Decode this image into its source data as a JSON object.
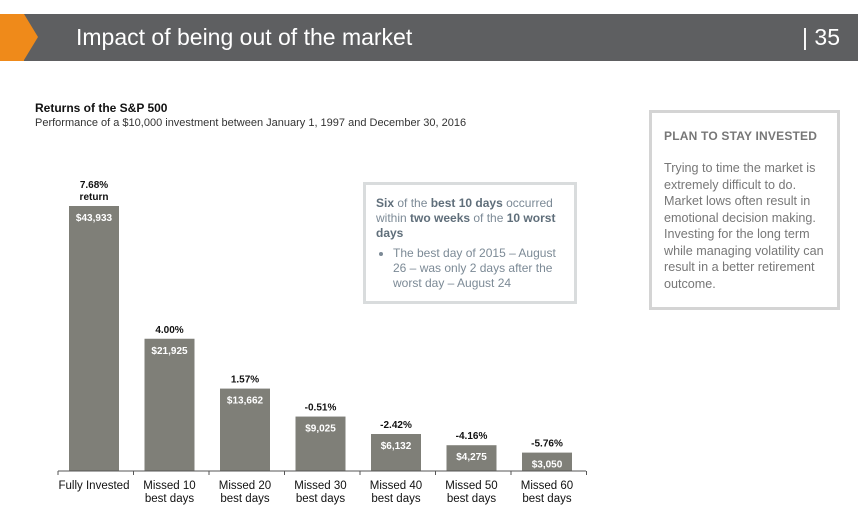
{
  "header": {
    "title": "Impact of being out of the market",
    "page_number": "| 35",
    "bar_color": "#5e5f61",
    "accent_color": "#ef8a1a"
  },
  "chart_data": {
    "type": "bar",
    "title": "Returns of the S&P 500",
    "subtitle": "Performance of a $10,000 investment between January 1, 1997 and December 30, 2016",
    "categories": [
      "Fully Invested",
      "Missed 10 best days",
      "Missed 20 best days",
      "Missed 30 best days",
      "Missed 40 best days",
      "Missed 50 best days",
      "Missed 60 best days"
    ],
    "values": [
      43933,
      21925,
      13662,
      9025,
      6132,
      4275,
      3050
    ],
    "value_labels": [
      "$43,933",
      "$21,925",
      "$13,662",
      "$9,025",
      "$6,132",
      "$4,275",
      "$3,050"
    ],
    "return_labels": [
      "7.68%\nreturn",
      "4.00%",
      "1.57%",
      "-0.51%",
      "-2.42%",
      "-4.16%",
      "-5.76%"
    ],
    "bar_color": "#7f7f78",
    "ylim": [
      0,
      43933
    ],
    "grid": false,
    "xlabel": "",
    "ylabel": ""
  },
  "callout": {
    "segments": [
      {
        "text": "Six",
        "bold": true
      },
      {
        "text": " of the ",
        "bold": false
      },
      {
        "text": "best 10 days",
        "bold": true
      },
      {
        "text": " occurred within ",
        "bold": false
      },
      {
        "text": "two weeks",
        "bold": true
      },
      {
        "text": " of the ",
        "bold": false
      },
      {
        "text": "10 worst days",
        "bold": true
      }
    ],
    "bullet": "The best day of 2015 – August 26 – was only 2 days after the worst day – August 24"
  },
  "sidebar": {
    "heading": "PLAN TO STAY INVESTED",
    "body": "Trying to time the market is extremely difficult to do. Market lows often result in emotional decision making. Investing for the long term while managing volatility can result in a better retirement outcome."
  }
}
